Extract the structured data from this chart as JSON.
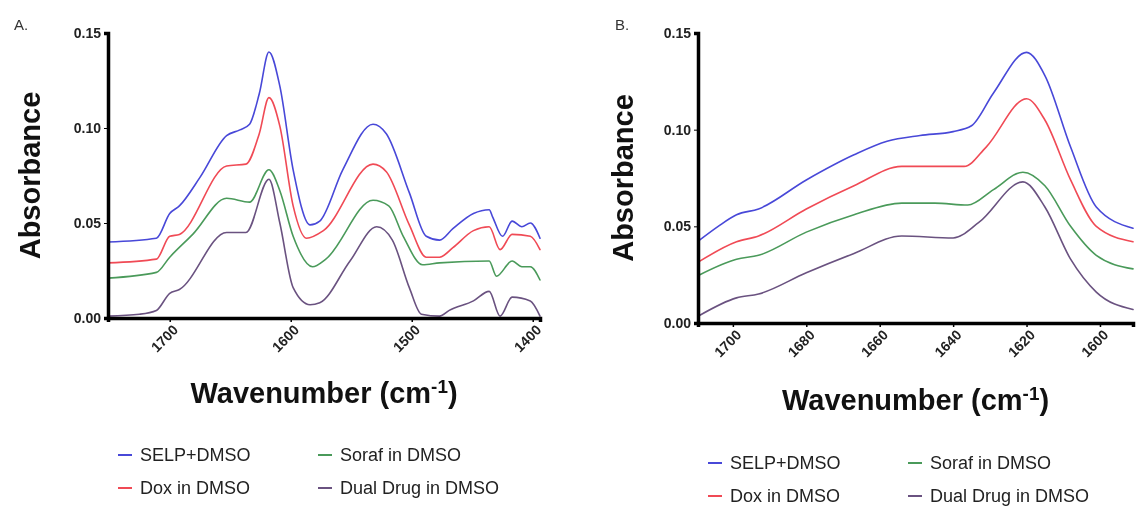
{
  "chart_data": [
    {
      "type": "line",
      "xlabel": "Wavenumber (cm$^{-1}$)",
      "ylabel": "Absorbance",
      "annotations": [
        "A."
      ],
      "legend": "bottom",
      "line_style": "solid",
      "marker": "none",
      "xlim": [
        1751,
        1394
      ],
      "xticks": [
        1700,
        1600,
        1500,
        1400
      ],
      "ylim": [
        0,
        0.15
      ],
      "yticks": [
        {
          "value": 0,
          "label": "0.00"
        },
        {
          "value": 0.05,
          "label": "0.05"
        },
        {
          "value": 0.1,
          "label": "0.10"
        },
        {
          "value": 0.15,
          "label": "0.15"
        }
      ],
      "series": [
        {
          "name": "SELP+DMSO",
          "color": "#4848d8",
          "x": [
            1751,
            1711,
            1700,
            1692,
            1675,
            1653,
            1642,
            1634,
            1626,
            1618,
            1609,
            1598,
            1584,
            1576,
            1557,
            1532,
            1521,
            1502,
            1488,
            1477,
            1466,
            1449,
            1436,
            1433,
            1425,
            1417,
            1409,
            1402,
            1394
          ],
          "values": [
            0.04,
            0.042,
            0.055,
            0.059,
            0.074,
            0.096,
            0.099,
            0.102,
            0.118,
            0.14,
            0.122,
            0.078,
            0.049,
            0.051,
            0.078,
            0.102,
            0.097,
            0.066,
            0.043,
            0.041,
            0.047,
            0.055,
            0.057,
            0.053,
            0.043,
            0.051,
            0.048,
            0.05,
            0.042
          ]
        },
        {
          "name": "Dox in DMSO",
          "color": "#f04a55",
          "x": [
            1751,
            1711,
            1700,
            1692,
            1653,
            1637,
            1626,
            1618,
            1609,
            1598,
            1587,
            1573,
            1532,
            1521,
            1502,
            1488,
            1477,
            1466,
            1449,
            1436,
            1427,
            1417,
            1402,
            1394
          ],
          "values": [
            0.029,
            0.031,
            0.043,
            0.044,
            0.08,
            0.081,
            0.097,
            0.116,
            0.101,
            0.059,
            0.042,
            0.046,
            0.081,
            0.077,
            0.049,
            0.032,
            0.032,
            0.037,
            0.046,
            0.048,
            0.036,
            0.044,
            0.043,
            0.036
          ]
        },
        {
          "name": "Soraf in DMSO",
          "color": "#4a9a5a",
          "x": [
            1751,
            1711,
            1700,
            1681,
            1653,
            1634,
            1618,
            1609,
            1598,
            1582,
            1571,
            1532,
            1519,
            1507,
            1491,
            1477,
            1436,
            1430,
            1417,
            1409,
            1402,
            1394
          ],
          "values": [
            0.021,
            0.024,
            0.032,
            0.044,
            0.063,
            0.061,
            0.078,
            0.067,
            0.043,
            0.027,
            0.031,
            0.062,
            0.059,
            0.043,
            0.028,
            0.029,
            0.03,
            0.022,
            0.03,
            0.027,
            0.027,
            0.02
          ]
        },
        {
          "name": "Dual Drug in DMSO",
          "color": "#6a5280",
          "x": [
            1751,
            1725,
            1711,
            1700,
            1692,
            1653,
            1637,
            1618,
            1609,
            1598,
            1584,
            1576,
            1551,
            1529,
            1516,
            1502,
            1492,
            1477,
            1469,
            1449,
            1436,
            1427,
            1417,
            1402,
            1394
          ],
          "values": [
            0.001,
            0.002,
            0.004,
            0.013,
            0.015,
            0.045,
            0.045,
            0.073,
            0.05,
            0.016,
            0.007,
            0.008,
            0.03,
            0.048,
            0.041,
            0.016,
            0.002,
            0.001,
            0.004,
            0.009,
            0.014,
            0.001,
            0.011,
            0.009,
            0.001
          ]
        }
      ]
    },
    {
      "type": "line",
      "xlabel": "Wavenumber (cm$^{-1}$)",
      "ylabel": "Absorbance",
      "annotations": [
        "B."
      ],
      "legend": "bottom",
      "line_style": "solid",
      "marker": "none",
      "xlim": [
        1709.5,
        1591
      ],
      "xticks": [
        1700,
        1680,
        1660,
        1640,
        1620,
        1600
      ],
      "ylim": [
        0,
        0.15
      ],
      "yticks": [
        {
          "value": 0,
          "label": "0.00"
        },
        {
          "value": 0.05,
          "label": "0.05"
        },
        {
          "value": 0.1,
          "label": "0.10"
        },
        {
          "value": 0.15,
          "label": "0.15"
        }
      ],
      "series": [
        {
          "name": "SELP+DMSO",
          "color": "#4848d8",
          "x": [
            1709,
            1704,
            1699,
            1693,
            1680,
            1667,
            1658,
            1649,
            1640,
            1635,
            1629,
            1620,
            1615,
            1608,
            1601,
            1591
          ],
          "values": [
            0.043,
            0.05,
            0.056,
            0.059,
            0.074,
            0.087,
            0.094,
            0.097,
            0.099,
            0.102,
            0.119,
            0.14,
            0.128,
            0.091,
            0.06,
            0.049
          ]
        },
        {
          "name": "Dox in DMSO",
          "color": "#f04a55",
          "x": [
            1709,
            1699,
            1693,
            1680,
            1667,
            1654,
            1637,
            1631,
            1620,
            1615,
            1608,
            1601,
            1591
          ],
          "values": [
            0.032,
            0.042,
            0.045,
            0.059,
            0.071,
            0.081,
            0.081,
            0.091,
            0.116,
            0.105,
            0.074,
            0.05,
            0.042
          ]
        },
        {
          "name": "Soraf in DMSO",
          "color": "#4a9a5a",
          "x": [
            1709,
            1699,
            1693,
            1680,
            1667,
            1654,
            1645,
            1636,
            1629,
            1621,
            1615,
            1608,
            1601,
            1591
          ],
          "values": [
            0.025,
            0.033,
            0.035,
            0.047,
            0.056,
            0.062,
            0.062,
            0.061,
            0.069,
            0.078,
            0.071,
            0.05,
            0.035,
            0.028
          ]
        },
        {
          "name": "Dual Drug in DMSO",
          "color": "#6a5280",
          "x": [
            1709,
            1699,
            1693,
            1680,
            1667,
            1654,
            1640,
            1633,
            1621,
            1615,
            1608,
            1601,
            1591
          ],
          "values": [
            0.004,
            0.013,
            0.015,
            0.026,
            0.036,
            0.045,
            0.044,
            0.052,
            0.073,
            0.06,
            0.033,
            0.016,
            0.007
          ]
        }
      ]
    }
  ]
}
